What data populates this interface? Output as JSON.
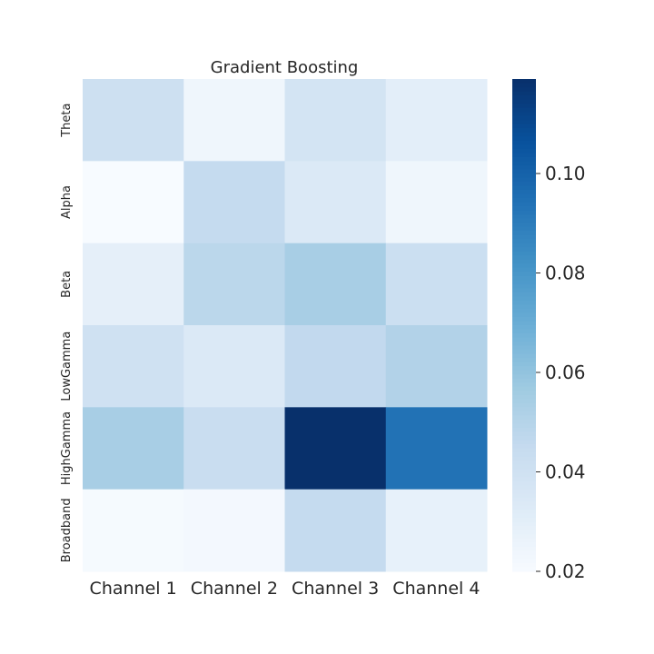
{
  "chart_data": {
    "type": "heatmap",
    "title": "Gradient Boosting",
    "xlabel": "",
    "ylabel": "",
    "x_categories": [
      "Channel 1",
      "Channel 2",
      "Channel 3",
      "Channel 4"
    ],
    "y_categories": [
      "Theta",
      "Alpha",
      "Beta",
      "LowGamma",
      "HighGamma",
      "Broadband"
    ],
    "values": [
      [
        0.041,
        0.024,
        0.038,
        0.03
      ],
      [
        0.02,
        0.045,
        0.034,
        0.024
      ],
      [
        0.029,
        0.048,
        0.054,
        0.042
      ],
      [
        0.04,
        0.034,
        0.046,
        0.051
      ],
      [
        0.054,
        0.043,
        0.119,
        0.094
      ],
      [
        0.021,
        0.022,
        0.045,
        0.028
      ]
    ],
    "colormap": "Blues",
    "vmin": 0.02,
    "vmax": 0.119,
    "colorbar_ticks": [
      0.02,
      0.04,
      0.06,
      0.08,
      0.1
    ],
    "colorbar_tick_labels": [
      "0.02",
      "0.04",
      "0.06",
      "0.08",
      "0.10"
    ],
    "grid": false
  }
}
